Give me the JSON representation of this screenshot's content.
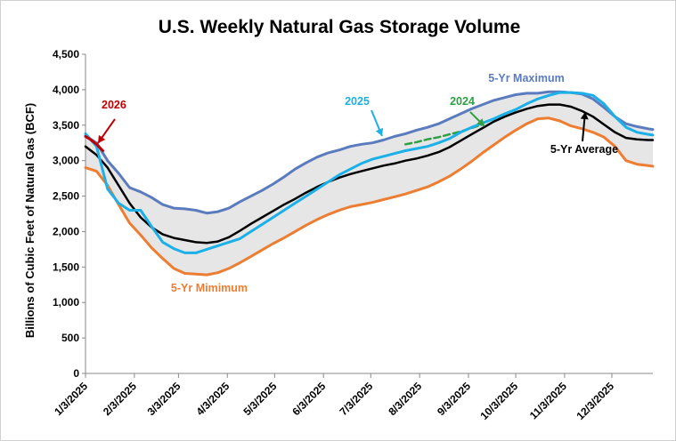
{
  "chart_data": {
    "type": "line",
    "title": "U.S. Weekly Natural Gas Storage Volume",
    "xlabel": "",
    "ylabel": "Billions of Cubic Feet of Natural Gas (BCF)",
    "ylim": [
      0,
      4500
    ],
    "yticks": [
      0,
      500,
      1000,
      1500,
      2000,
      2500,
      3000,
      3500,
      4000,
      4500
    ],
    "ytick_labels": [
      "0",
      "500",
      "1,000",
      "1,500",
      "2,000",
      "2,500",
      "3,000",
      "3,500",
      "4,000",
      "4,500"
    ],
    "xlim_days": [
      0,
      360
    ],
    "x_ticks": [
      {
        "label": "1/3/2025",
        "day": 0
      },
      {
        "label": "2/3/2025",
        "day": 31
      },
      {
        "label": "3/3/2025",
        "day": 59
      },
      {
        "label": "4/3/2025",
        "day": 90
      },
      {
        "label": "5/3/2025",
        "day": 120
      },
      {
        "label": "6/3/2025",
        "day": 151
      },
      {
        "label": "7/3/2025",
        "day": 181
      },
      {
        "label": "8/3/2025",
        "day": 212
      },
      {
        "label": "9/3/2025",
        "day": 243
      },
      {
        "label": "10/3/2025",
        "day": 273
      },
      {
        "label": "11/3/2025",
        "day": 304
      },
      {
        "label": "12/3/2025",
        "day": 334
      }
    ],
    "gridlines": false,
    "band": {
      "description": "range between 5-Yr Minimum and 5-Yr Maximum",
      "fill": "#e6e6e6"
    },
    "series": [
      {
        "name": "5-Yr Maximum",
        "color": "#5b7bbf",
        "width": 3,
        "dash": "",
        "days": [
          0,
          7,
          14,
          21,
          28,
          35,
          42,
          49,
          56,
          63,
          70,
          77,
          84,
          91,
          98,
          105,
          112,
          119,
          126,
          133,
          140,
          147,
          154,
          161,
          168,
          175,
          182,
          189,
          196,
          203,
          210,
          217,
          224,
          231,
          238,
          245,
          252,
          259,
          266,
          273,
          280,
          287,
          294,
          301,
          308,
          315,
          322,
          329,
          336,
          343,
          350,
          357,
          360
        ],
        "values": [
          3350,
          3250,
          3000,
          2820,
          2620,
          2560,
          2480,
          2380,
          2330,
          2320,
          2300,
          2260,
          2280,
          2330,
          2420,
          2500,
          2580,
          2670,
          2770,
          2880,
          2970,
          3050,
          3110,
          3150,
          3200,
          3230,
          3250,
          3290,
          3340,
          3380,
          3430,
          3470,
          3520,
          3590,
          3660,
          3730,
          3790,
          3850,
          3890,
          3930,
          3950,
          3950,
          3970,
          3970,
          3960,
          3940,
          3870,
          3750,
          3620,
          3520,
          3480,
          3450,
          3440
        ]
      },
      {
        "name": "5-Yr Mimimum",
        "color": "#ed7d31",
        "width": 3,
        "dash": "",
        "days": [
          0,
          7,
          14,
          21,
          28,
          35,
          42,
          49,
          56,
          63,
          70,
          77,
          84,
          91,
          98,
          105,
          112,
          119,
          126,
          133,
          140,
          147,
          154,
          161,
          168,
          175,
          182,
          189,
          196,
          203,
          210,
          217,
          224,
          231,
          238,
          245,
          252,
          259,
          266,
          273,
          280,
          287,
          294,
          301,
          308,
          315,
          322,
          329,
          336,
          343,
          350,
          357,
          360
        ],
        "values": [
          2900,
          2850,
          2650,
          2380,
          2120,
          1950,
          1770,
          1620,
          1480,
          1410,
          1400,
          1390,
          1420,
          1480,
          1560,
          1650,
          1740,
          1830,
          1910,
          2000,
          2090,
          2170,
          2240,
          2300,
          2350,
          2380,
          2410,
          2450,
          2490,
          2530,
          2580,
          2630,
          2700,
          2780,
          2880,
          2990,
          3110,
          3220,
          3330,
          3430,
          3520,
          3590,
          3600,
          3560,
          3490,
          3450,
          3400,
          3330,
          3200,
          3000,
          2950,
          2930,
          2920
        ]
      },
      {
        "name": "5-Yr Average",
        "color": "#000000",
        "width": 2.5,
        "dash": "",
        "days": [
          0,
          7,
          14,
          21,
          28,
          35,
          42,
          49,
          56,
          63,
          70,
          77,
          84,
          91,
          98,
          105,
          112,
          119,
          126,
          133,
          140,
          147,
          154,
          161,
          168,
          175,
          182,
          189,
          196,
          203,
          210,
          217,
          224,
          231,
          238,
          245,
          252,
          259,
          266,
          273,
          280,
          287,
          294,
          301,
          308,
          315,
          322,
          329,
          336,
          343,
          350,
          357,
          360
        ],
        "values": [
          3200,
          3080,
          2900,
          2650,
          2400,
          2200,
          2060,
          1960,
          1910,
          1880,
          1850,
          1840,
          1860,
          1920,
          2010,
          2110,
          2200,
          2290,
          2380,
          2460,
          2550,
          2630,
          2700,
          2760,
          2810,
          2850,
          2890,
          2930,
          2960,
          3000,
          3030,
          3070,
          3120,
          3190,
          3280,
          3370,
          3460,
          3550,
          3620,
          3680,
          3730,
          3770,
          3790,
          3790,
          3760,
          3700,
          3620,
          3510,
          3400,
          3320,
          3300,
          3290,
          3290
        ]
      },
      {
        "name": "2025",
        "color": "#1cb0e8",
        "width": 3,
        "dash": "",
        "days": [
          0,
          7,
          14,
          21,
          28,
          35,
          42,
          49,
          56,
          63,
          70,
          77,
          84,
          91,
          98,
          105,
          112,
          119,
          126,
          133,
          140,
          147,
          154,
          161,
          168,
          175,
          182,
          189,
          196,
          203,
          210,
          217,
          224,
          231,
          238,
          245,
          252,
          259,
          266,
          273,
          280,
          287,
          294,
          301,
          308,
          315,
          322,
          329,
          336,
          343,
          350,
          357,
          360
        ],
        "values": [
          3380,
          3200,
          2600,
          2400,
          2300,
          2300,
          2070,
          1850,
          1760,
          1700,
          1700,
          1750,
          1800,
          1850,
          1900,
          2000,
          2100,
          2200,
          2300,
          2400,
          2500,
          2600,
          2700,
          2800,
          2880,
          2960,
          3020,
          3060,
          3100,
          3140,
          3170,
          3200,
          3250,
          3310,
          3400,
          3470,
          3530,
          3590,
          3660,
          3720,
          3800,
          3870,
          3920,
          3960,
          3960,
          3950,
          3920,
          3800,
          3620,
          3470,
          3400,
          3370,
          3360
        ]
      },
      {
        "name": "2024",
        "color": "#2ea043",
        "width": 2.5,
        "dash": "7,4",
        "days": [
          203,
          210,
          217,
          224,
          231,
          238,
          245,
          252
        ],
        "values": [
          3230,
          3260,
          3300,
          3330,
          3370,
          3410,
          3460,
          3510
        ]
      },
      {
        "name": "2026",
        "color": "#c00000",
        "width": 3,
        "dash": "",
        "days": [
          0,
          3,
          7,
          11
        ],
        "values": [
          3340,
          3300,
          3230,
          3140
        ]
      }
    ],
    "annotations": [
      {
        "text": "2026",
        "color": "#c00000"
      },
      {
        "text": "2025",
        "color": "#1cb0e8"
      },
      {
        "text": "2024",
        "color": "#2ea043"
      },
      {
        "text": "5-Yr Maximum",
        "color": "#5b7bbf"
      },
      {
        "text": "5-Yr Average",
        "color": "#000000"
      },
      {
        "text": "5-Yr Mimimum",
        "color": "#ed7d31"
      }
    ]
  }
}
